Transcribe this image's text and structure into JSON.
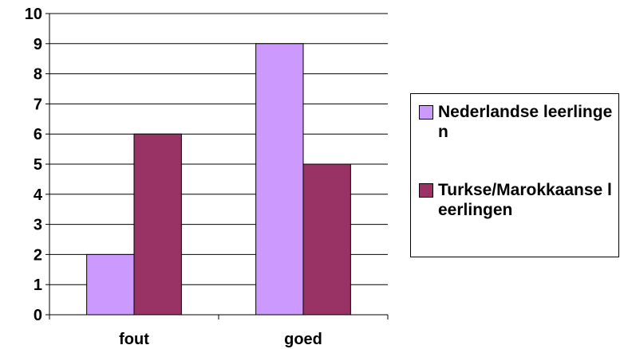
{
  "chart_data": {
    "type": "bar",
    "categories": [
      "fout",
      "goed"
    ],
    "series": [
      {
        "name": "Nederlandse leerlingen",
        "values": [
          2,
          9
        ],
        "color": "#CC99FF"
      },
      {
        "name": "Turkse/Marokkaanse leerlingen",
        "values": [
          6,
          5
        ],
        "color": "#993366"
      }
    ],
    "ylim": [
      0,
      10
    ],
    "yticks": [
      0,
      1,
      2,
      3,
      4,
      5,
      6,
      7,
      8,
      9,
      10
    ],
    "grid": true,
    "legend_position": "right",
    "title": "",
    "xlabel": "",
    "ylabel": ""
  }
}
